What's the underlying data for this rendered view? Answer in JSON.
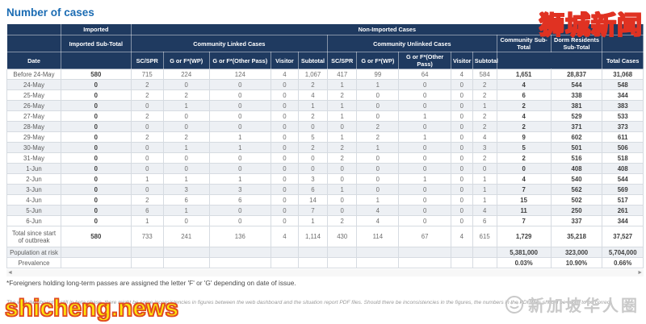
{
  "title": "Number of cases",
  "table": {
    "header": {
      "imported": "Imported",
      "non_imported": "Non-Imported Cases",
      "imported_subtotal": "Imported Sub-Total",
      "community_linked": "Community Linked Cases",
      "community_unlinked": "Community Unlinked Cases",
      "community_subtotal": "Community Sub-Total",
      "dorm_subtotal": "Dorm Residents Sub-Total",
      "total_cases": "Total Cases",
      "date": "Date",
      "sub_columns": [
        "SC/SPR",
        "G or F*(WP)",
        "G or F*(Other Pass)",
        "Visitor",
        "Subtotal"
      ]
    },
    "rows": [
      [
        "Before 24-May",
        "580",
        "715",
        "224",
        "124",
        "4",
        "1,067",
        "417",
        "99",
        "64",
        "4",
        "584",
        "1,651",
        "28,837",
        "31,068"
      ],
      [
        "24-May",
        "0",
        "2",
        "0",
        "0",
        "0",
        "2",
        "1",
        "1",
        "0",
        "0",
        "2",
        "4",
        "544",
        "548"
      ],
      [
        "25-May",
        "0",
        "2",
        "2",
        "0",
        "0",
        "4",
        "2",
        "0",
        "0",
        "0",
        "2",
        "6",
        "338",
        "344"
      ],
      [
        "26-May",
        "0",
        "0",
        "1",
        "0",
        "0",
        "1",
        "1",
        "0",
        "0",
        "0",
        "1",
        "2",
        "381",
        "383"
      ],
      [
        "27-May",
        "0",
        "2",
        "0",
        "0",
        "0",
        "2",
        "1",
        "0",
        "1",
        "0",
        "2",
        "4",
        "529",
        "533"
      ],
      [
        "28-May",
        "0",
        "0",
        "0",
        "0",
        "0",
        "0",
        "0",
        "2",
        "0",
        "0",
        "2",
        "2",
        "371",
        "373"
      ],
      [
        "29-May",
        "0",
        "2",
        "2",
        "1",
        "0",
        "5",
        "1",
        "2",
        "1",
        "0",
        "4",
        "9",
        "602",
        "611"
      ],
      [
        "30-May",
        "0",
        "0",
        "1",
        "1",
        "0",
        "2",
        "2",
        "1",
        "0",
        "0",
        "3",
        "5",
        "501",
        "506"
      ],
      [
        "31-May",
        "0",
        "0",
        "0",
        "0",
        "0",
        "0",
        "2",
        "0",
        "0",
        "0",
        "2",
        "2",
        "516",
        "518"
      ],
      [
        "1-Jun",
        "0",
        "0",
        "0",
        "0",
        "0",
        "0",
        "0",
        "0",
        "0",
        "0",
        "0",
        "0",
        "408",
        "408"
      ],
      [
        "2-Jun",
        "0",
        "1",
        "1",
        "1",
        "0",
        "3",
        "0",
        "0",
        "1",
        "0",
        "1",
        "4",
        "540",
        "544"
      ],
      [
        "3-Jun",
        "0",
        "0",
        "3",
        "3",
        "0",
        "6",
        "1",
        "0",
        "0",
        "0",
        "1",
        "7",
        "562",
        "569"
      ],
      [
        "4-Jun",
        "0",
        "2",
        "6",
        "6",
        "0",
        "14",
        "0",
        "1",
        "0",
        "0",
        "1",
        "15",
        "502",
        "517"
      ],
      [
        "5-Jun",
        "0",
        "6",
        "1",
        "0",
        "0",
        "7",
        "0",
        "4",
        "0",
        "0",
        "4",
        "11",
        "250",
        "261"
      ],
      [
        "6-Jun",
        "0",
        "1",
        "0",
        "0",
        "0",
        "1",
        "2",
        "4",
        "0",
        "0",
        "6",
        "7",
        "337",
        "344"
      ],
      [
        "Total since start of outbreak",
        "580",
        "733",
        "241",
        "136",
        "4",
        "1,114",
        "430",
        "114",
        "67",
        "4",
        "615",
        "1,729",
        "35,218",
        "37,527"
      ],
      [
        "Population at risk",
        "",
        "",
        "",
        "",
        "",
        "",
        "",
        "",
        "",
        "",
        "",
        "5,381,000",
        "323,000",
        "5,704,000"
      ],
      [
        "Prevalence",
        "",
        "",
        "",
        "",
        "",
        "",
        "",
        "",
        "",
        "",
        "",
        "0.03%",
        "10.90%",
        "0.66%"
      ]
    ]
  },
  "scrollbar": {
    "left_arrow": "◄",
    "right_arrow": "►"
  },
  "footnote": "*Foreigners holding long-term passes are assigned the letter 'F' or 'G' depending on date of issue.",
  "disclaimer": "The web dashboard is still in beta phase, there might be some inconsistencies in figures between the web dashboard and the situation report PDF files. Should there be inconsistencies in the figures, the numbers in the PDF files should be taken to be correct.",
  "watermarks": {
    "top_right": "狮城新闻",
    "bottom_left": "shicheng.news",
    "bottom_right": "新加坡华人圈"
  }
}
